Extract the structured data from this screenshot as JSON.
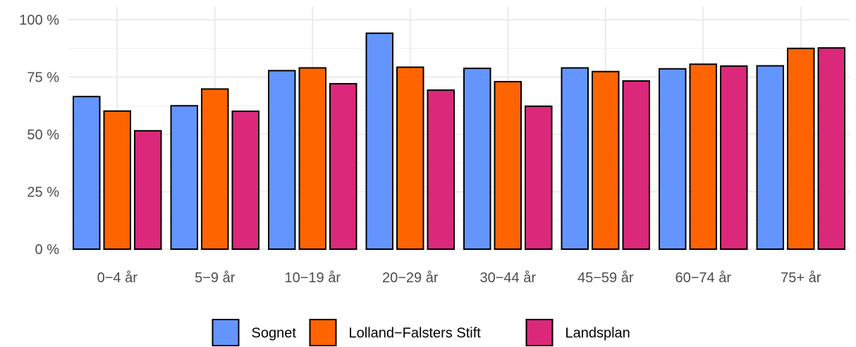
{
  "chart_data": {
    "type": "bar",
    "title": "",
    "xlabel": "",
    "ylabel": "",
    "categories": [
      "0−4 år",
      "5−9 år",
      "10−19 år",
      "20−29 år",
      "30−44 år",
      "45−59 år",
      "60−74 år",
      "75+ år"
    ],
    "series": [
      {
        "name": "Sognet",
        "color": "#6495ff",
        "values": [
          66.5,
          62.5,
          77.8,
          94.1,
          78.8,
          79.0,
          78.6,
          79.9
        ]
      },
      {
        "name": "Lolland−Falsters Stift",
        "color": "#ff6400",
        "values": [
          60.2,
          69.8,
          79.0,
          79.3,
          73.0,
          77.4,
          80.6,
          87.5
        ]
      },
      {
        "name": "Landsplan",
        "color": "#dc287a",
        "values": [
          51.6,
          60.1,
          72.1,
          69.3,
          62.3,
          73.3,
          79.8,
          87.7
        ]
      }
    ],
    "ylim": [
      0,
      100
    ],
    "yticks": [
      0,
      25,
      50,
      75,
      100
    ],
    "ytick_labels": [
      "0 %",
      "25 %",
      "50 %",
      "75 %",
      "100 %"
    ],
    "grid": true,
    "legend_position": "bottom"
  }
}
